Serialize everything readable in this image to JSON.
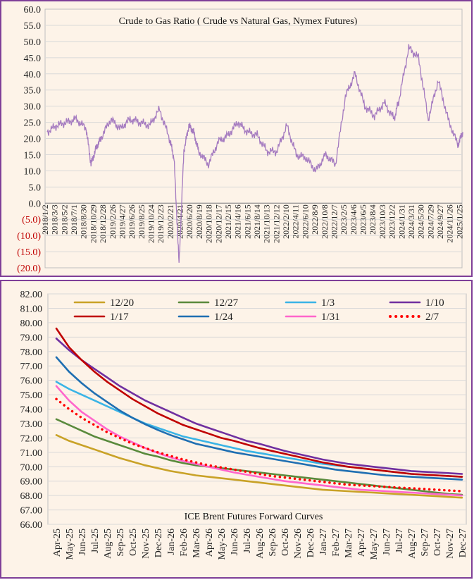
{
  "chart_data": [
    {
      "type": "line",
      "title": "Crude to Gas Ratio ( Crude vs Natural Gas, Nymex Futures)",
      "ylim": [
        -20,
        60
      ],
      "y_ticks": [
        "60.0",
        "55.0",
        "50.0",
        "45.0",
        "40.0",
        "35.0",
        "30.0",
        "25.0",
        "20.0",
        "15.0",
        "10.0",
        "5.0",
        "0.0",
        "(5.0)",
        "(10.0)",
        "(15.0)",
        "(20.0)"
      ],
      "x_ticks": [
        "2018/1/2",
        "2018/3/3",
        "2018/5/2",
        "2018/7/1",
        "2018/8/30",
        "2018/10/29",
        "2018/12/28",
        "2019/2/26",
        "2019/4/27",
        "2019/6/26",
        "2019/8/25",
        "2019/10/24",
        "2019/12/23",
        "2020/2/21",
        "2020/4/21",
        "2020/6/20",
        "2020/8/19",
        "2020/10/18",
        "2020/12/17",
        "2021/2/15",
        "2021/4/16",
        "2021/6/15",
        "2021/8/14",
        "2021/10/13",
        "2021/12/12",
        "2022/2/10",
        "2022/4/11",
        "2022/6/10",
        "2022/8/9",
        "2022/10/8",
        "2022/12/7",
        "2023/2/5",
        "2023/4/6",
        "2023/6/5",
        "2023/8/4",
        "2023/10/3",
        "2023/12/2",
        "2024/1/31",
        "2024/3/31",
        "2024/5/30",
        "2024/7/29",
        "2024/9/27",
        "2024/11/26",
        "2025/1/25"
      ],
      "series": [
        {
          "color": "#a57bc0",
          "x": [
            "2018-01",
            "2018-03",
            "2018-05",
            "2018-07",
            "2018-09",
            "2018-10",
            "2018-11",
            "2018-12",
            "2019-02",
            "2019-04",
            "2019-06",
            "2019-08",
            "2019-10",
            "2019-12",
            "2020-02",
            "2020-03",
            "2020-04",
            "2020-05",
            "2020-06",
            "2020-07",
            "2020-08",
            "2020-10",
            "2020-12",
            "2021-02",
            "2021-04",
            "2021-06",
            "2021-08",
            "2021-10",
            "2021-12",
            "2022-02",
            "2022-04",
            "2022-06",
            "2022-08",
            "2022-10",
            "2022-12",
            "2023-02",
            "2023-04",
            "2023-06",
            "2023-08",
            "2023-10",
            "2023-12",
            "2024-01",
            "2024-03",
            "2024-05",
            "2024-07",
            "2024-09",
            "2024-11",
            "2025-01",
            "2025-02"
          ],
          "values": [
            22,
            24,
            25,
            26,
            23,
            12,
            17,
            20,
            26,
            23,
            26,
            25,
            24,
            29,
            20,
            14,
            -19,
            16,
            24,
            22,
            16,
            12,
            19,
            21,
            25,
            22,
            21,
            16,
            16,
            24,
            15,
            14,
            10,
            15,
            12,
            33,
            40,
            30,
            27,
            31,
            26,
            32,
            48,
            45,
            26,
            38,
            26,
            18,
            22
          ]
        }
      ]
    },
    {
      "type": "line",
      "title": "ICE Brent Futures Forward Curves",
      "ylim": [
        66,
        82
      ],
      "y_ticks": [
        "82.00",
        "81.00",
        "80.00",
        "79.00",
        "78.00",
        "77.00",
        "76.00",
        "75.00",
        "74.00",
        "73.00",
        "72.00",
        "71.00",
        "70.00",
        "69.00",
        "68.00",
        "67.00",
        "66.00"
      ],
      "categories": [
        "Apr-25",
        "May-25",
        "Jun-25",
        "Jul-25",
        "Aug-25",
        "Sep-25",
        "Oct-25",
        "Nov-25",
        "Dec-25",
        "Jan-26",
        "Feb-26",
        "Mar-26",
        "Apr-26",
        "May-26",
        "Jun-26",
        "Jul-26",
        "Aug-26",
        "Sep-26",
        "Oct-26",
        "Nov-26",
        "Dec-26",
        "Jan-27",
        "Feb-27",
        "Mar-27",
        "Apr-27",
        "May-27",
        "Jun-27",
        "Jul-27",
        "Aug-27",
        "Sep-27",
        "Oct-27",
        "Nov-27",
        "Dec-27"
      ],
      "legend_position": "top",
      "series": [
        {
          "name": "12/20",
          "color": "#c9a227",
          "dash": "solid",
          "values": [
            72.2,
            71.8,
            71.5,
            71.2,
            70.9,
            70.6,
            70.35,
            70.1,
            69.9,
            69.7,
            69.55,
            69.4,
            69.3,
            69.2,
            69.1,
            69.0,
            68.9,
            68.8,
            68.7,
            68.6,
            68.5,
            68.4,
            68.35,
            68.3,
            68.25,
            68.2,
            68.15,
            68.1,
            68.05,
            68.0,
            67.95,
            67.9,
            67.85
          ]
        },
        {
          "name": "12/27",
          "color": "#5a8a3c",
          "dash": "solid",
          "values": [
            73.3,
            72.9,
            72.5,
            72.1,
            71.8,
            71.5,
            71.2,
            70.9,
            70.7,
            70.45,
            70.25,
            70.1,
            70.0,
            69.9,
            69.8,
            69.7,
            69.6,
            69.5,
            69.4,
            69.3,
            69.2,
            69.1,
            69.0,
            68.9,
            68.8,
            68.7,
            68.6,
            68.5,
            68.4,
            68.3,
            68.2,
            68.1,
            68.05
          ]
        },
        {
          "name": "1/3",
          "color": "#3ab4e6",
          "dash": "solid",
          "values": [
            75.9,
            75.4,
            75.0,
            74.6,
            74.2,
            73.8,
            73.4,
            73.0,
            72.7,
            72.4,
            72.1,
            71.9,
            71.7,
            71.5,
            71.3,
            71.1,
            70.95,
            70.8,
            70.65,
            70.5,
            70.35,
            70.2,
            70.1,
            70.0,
            69.9,
            69.8,
            69.7,
            69.6,
            69.5,
            69.45,
            69.4,
            69.35,
            69.3
          ]
        },
        {
          "name": "1/10",
          "color": "#7030a0",
          "dash": "solid",
          "values": [
            78.9,
            78.1,
            77.4,
            76.8,
            76.2,
            75.6,
            75.1,
            74.6,
            74.2,
            73.8,
            73.4,
            73.0,
            72.7,
            72.4,
            72.1,
            71.8,
            71.6,
            71.35,
            71.1,
            70.9,
            70.7,
            70.5,
            70.35,
            70.2,
            70.1,
            70.0,
            69.9,
            69.8,
            69.7,
            69.65,
            69.6,
            69.55,
            69.5
          ]
        },
        {
          "name": "1/17",
          "color": "#c00000",
          "dash": "solid",
          "values": [
            79.6,
            78.3,
            77.4,
            76.6,
            75.9,
            75.3,
            74.7,
            74.2,
            73.7,
            73.3,
            72.9,
            72.6,
            72.3,
            72.0,
            71.8,
            71.55,
            71.3,
            71.1,
            70.9,
            70.7,
            70.5,
            70.3,
            70.15,
            70.0,
            69.9,
            69.8,
            69.7,
            69.6,
            69.5,
            69.45,
            69.4,
            69.35,
            69.3
          ]
        },
        {
          "name": "1/24",
          "color": "#1f6fb2",
          "dash": "solid",
          "values": [
            77.6,
            76.6,
            75.8,
            75.1,
            74.5,
            73.9,
            73.4,
            72.95,
            72.55,
            72.2,
            71.9,
            71.6,
            71.4,
            71.2,
            71.0,
            70.85,
            70.7,
            70.55,
            70.4,
            70.25,
            70.1,
            69.95,
            69.8,
            69.7,
            69.6,
            69.5,
            69.4,
            69.35,
            69.3,
            69.25,
            69.2,
            69.15,
            69.1
          ]
        },
        {
          "name": "1/31",
          "color": "#ff66cc",
          "dash": "solid",
          "values": [
            75.6,
            74.6,
            73.8,
            73.2,
            72.6,
            72.1,
            71.7,
            71.3,
            70.95,
            70.65,
            70.4,
            70.2,
            70.0,
            69.8,
            69.6,
            69.45,
            69.3,
            69.15,
            69.0,
            68.9,
            68.8,
            68.7,
            68.6,
            68.5,
            68.4,
            68.35,
            68.3,
            68.25,
            68.2,
            68.15,
            68.1,
            68.05,
            68.0
          ]
        },
        {
          "name": "2/7",
          "color": "#ff0000",
          "dash": "dotted",
          "values": [
            74.7,
            74.0,
            73.4,
            72.9,
            72.4,
            72.0,
            71.6,
            71.3,
            71.0,
            70.75,
            70.5,
            70.3,
            70.1,
            69.95,
            69.8,
            69.65,
            69.5,
            69.35,
            69.25,
            69.15,
            69.05,
            68.95,
            68.85,
            68.75,
            68.7,
            68.65,
            68.6,
            68.55,
            68.5,
            68.45,
            68.4,
            68.35,
            68.3
          ]
        }
      ]
    }
  ]
}
